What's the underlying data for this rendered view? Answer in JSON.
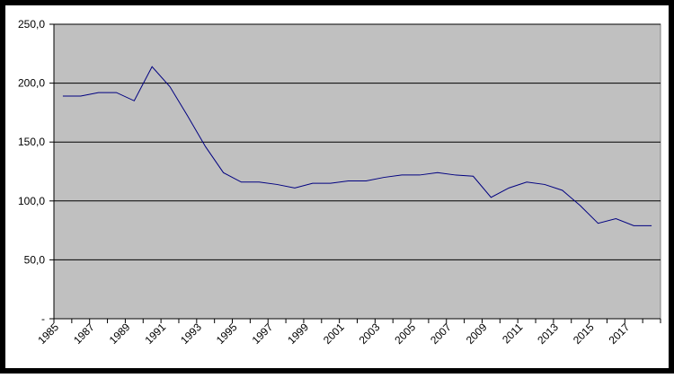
{
  "chart_data": {
    "type": "line",
    "categories": [
      "1985",
      null,
      "1987",
      null,
      "1989",
      null,
      "1991",
      null,
      "1993",
      null,
      "1995",
      null,
      "1997",
      null,
      "1999",
      null,
      "2001",
      null,
      "2003",
      null,
      "2005",
      null,
      "2007",
      null,
      "2009",
      null,
      "2011",
      null,
      "2013",
      null,
      "2015",
      null,
      "2017",
      null
    ],
    "series": [
      {
        "color": "#000080",
        "values": [
          189,
          189,
          192,
          192,
          185,
          214,
          197,
          172,
          146,
          124,
          116,
          116,
          114,
          111,
          115,
          115,
          117,
          117,
          120,
          122,
          122,
          124,
          122,
          121,
          103,
          111,
          116,
          114,
          109,
          96,
          81,
          85,
          79,
          79
        ]
      }
    ],
    "ylim": [
      0,
      250
    ],
    "yticks": [
      {
        "value": 0,
        "label": "-"
      },
      {
        "value": 50,
        "label": "50,0"
      },
      {
        "value": 100,
        "label": "100,0"
      },
      {
        "value": 150,
        "label": "150,0"
      },
      {
        "value": 200,
        "label": "200,0"
      },
      {
        "value": 250,
        "label": "250,0"
      }
    ],
    "grid": true,
    "plot_background": "#c0c0c0"
  }
}
